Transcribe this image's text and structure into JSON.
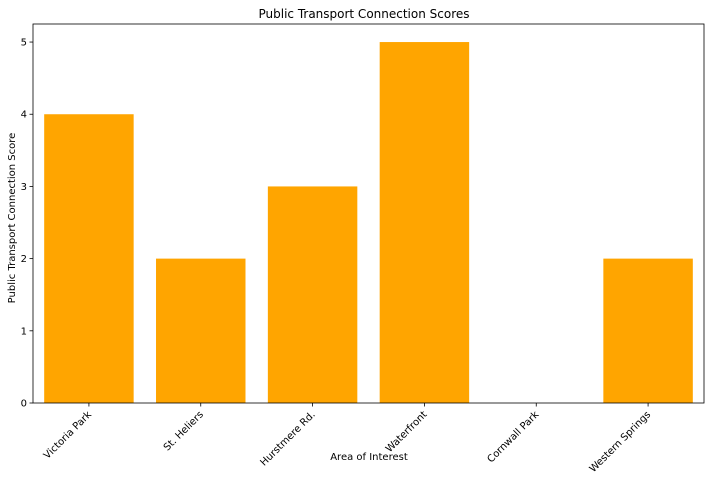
{
  "chart_data": {
    "type": "bar",
    "title": "Public Transport Connection Scores",
    "xlabel": "Area of Interest",
    "ylabel": "Public Transport Connection Score",
    "categories": [
      "Victoria Park",
      "St. Heliers",
      "Hurstmere Rd.",
      "Waterfront",
      "Cornwall Park",
      "Western Springs"
    ],
    "values": [
      4,
      2,
      3,
      5,
      0,
      2
    ],
    "ylim": [
      0,
      5.25
    ],
    "yticks": [
      0,
      1,
      2,
      3,
      4,
      5
    ],
    "grid": false,
    "legend": "none",
    "xtick_rotation_deg": 45,
    "colors": {
      "bar": "#FFA500",
      "axis": "#000000",
      "background": "#ffffff"
    }
  }
}
